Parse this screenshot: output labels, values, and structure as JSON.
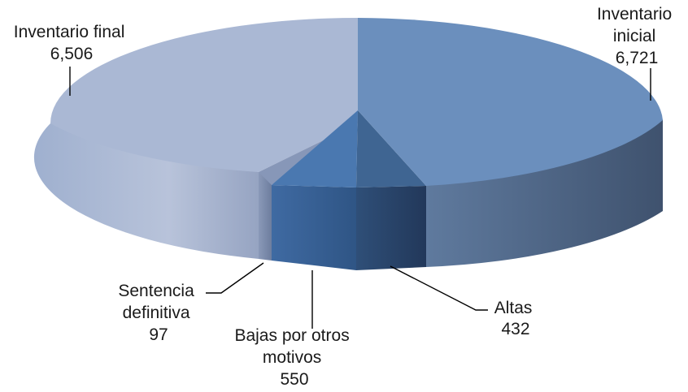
{
  "chart_data": {
    "type": "pie",
    "title": "",
    "slices": [
      {
        "label": "Inventario inicial",
        "value": 6721,
        "display": "6,721",
        "color": "#6b8fbd"
      },
      {
        "label": "Altas",
        "value": 432,
        "display": "432",
        "color": "#3f6592"
      },
      {
        "label": "Bajas por otros motivos",
        "value": 550,
        "display": "550",
        "color": "#4a78b0"
      },
      {
        "label": "Sentencia definitiva",
        "value": 97,
        "display": "97",
        "color": "#8797b8"
      },
      {
        "label": "Inventario final",
        "value": 6506,
        "display": "6,506",
        "color": "#aab8d4"
      }
    ],
    "label_lines": {
      "inventario_inicial": [
        "Inventario",
        "inicial"
      ],
      "altas": [
        "Altas"
      ],
      "bajas_por_otros_motivos": [
        "Bajas por otros",
        "motivos"
      ],
      "sentencia_definitiva": [
        "Sentencia",
        "definitiva"
      ],
      "inventario_final": [
        "Inventario final"
      ]
    }
  }
}
